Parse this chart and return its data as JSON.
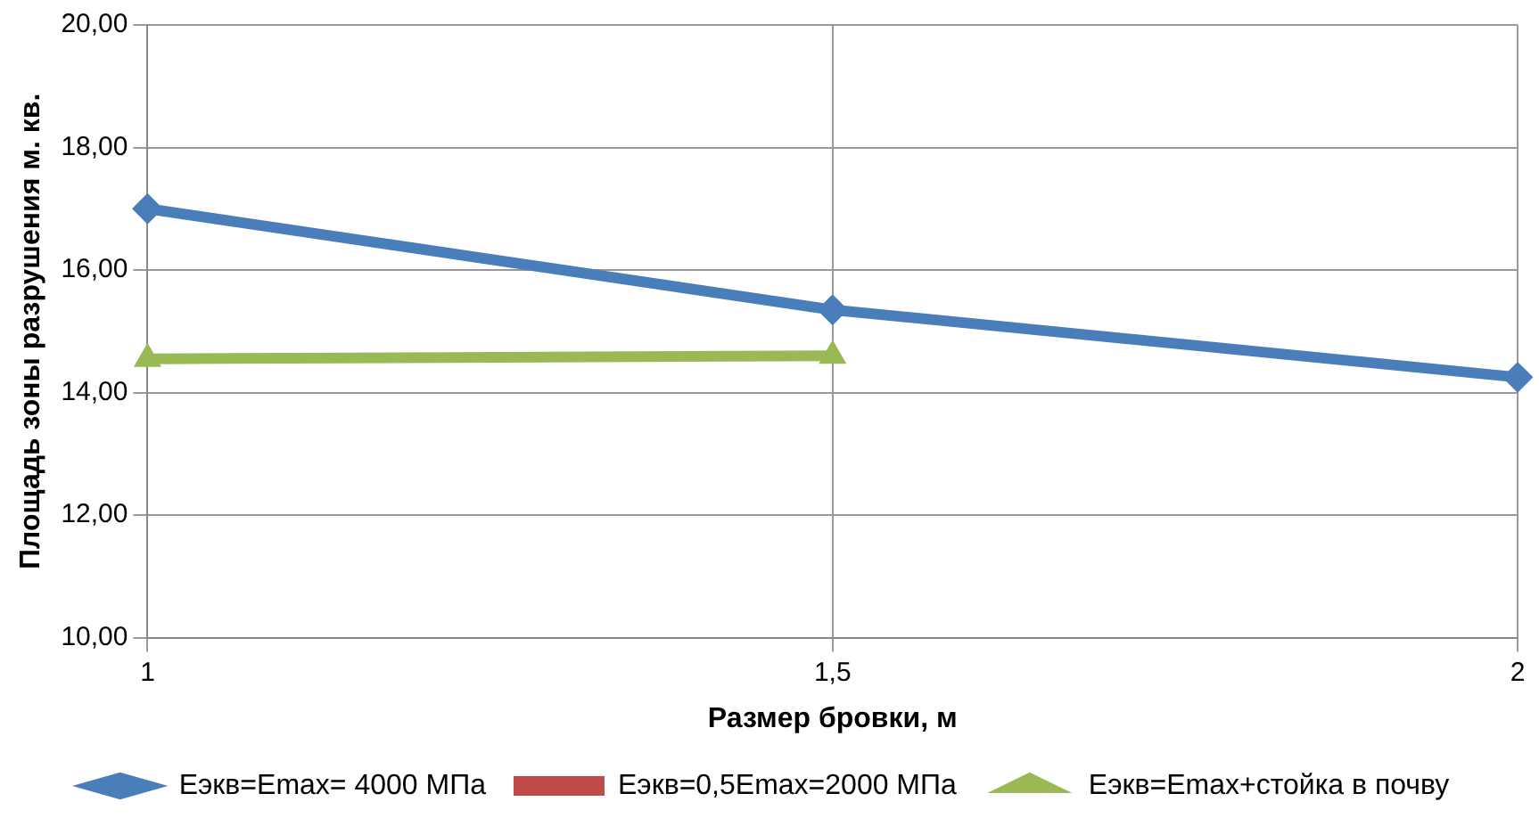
{
  "chart_data": {
    "type": "line",
    "xlabel": "Размер бровки, м",
    "ylabel": "Площадь зоны разрушения м. кв.",
    "categories": [
      "1",
      "1,5",
      "2"
    ],
    "series": [
      {
        "name": "Еэкв=Emax= 4000 МПа",
        "color": "#4a7ebb",
        "marker": "diamond",
        "values": [
          17.0,
          15.35,
          14.25
        ]
      },
      {
        "name": "Еэкв=0,5Emax=2000 МПа",
        "color": "#be4b48",
        "marker": "square",
        "values": [
          null,
          null,
          null
        ]
      },
      {
        "name": "Еэкв=Emax+стойка в почву",
        "color": "#98b954",
        "marker": "triangle",
        "values": [
          14.55,
          14.6,
          null
        ]
      }
    ],
    "ylim": [
      10,
      20
    ],
    "yticks": [
      {
        "value": 10,
        "label": "10,00"
      },
      {
        "value": 12,
        "label": "12,00"
      },
      {
        "value": 14,
        "label": "14,00"
      },
      {
        "value": 16,
        "label": "16,00"
      },
      {
        "value": 18,
        "label": "18,00"
      },
      {
        "value": 20,
        "label": "20,00"
      }
    ],
    "grid": true,
    "legend": "bottom",
    "line_style": "solid"
  }
}
